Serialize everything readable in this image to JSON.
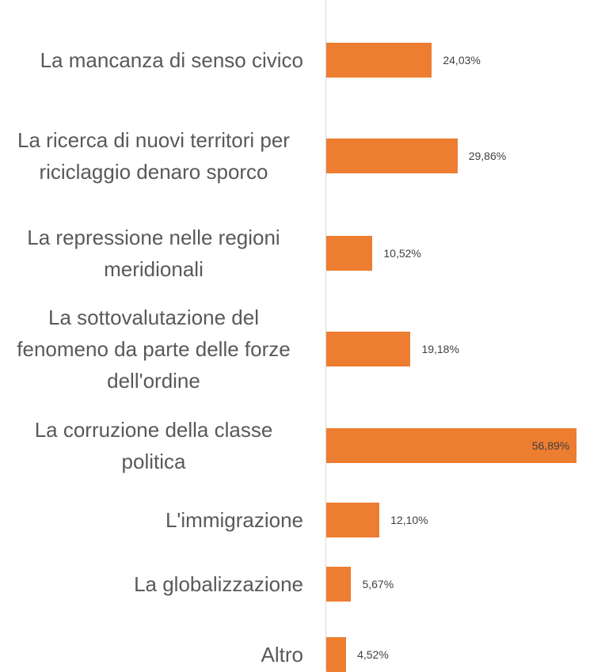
{
  "chart_data": {
    "type": "bar",
    "orientation": "horizontal",
    "categories": [
      "La mancanza di senso civico",
      "La ricerca di nuovi territori per riciclaggio denaro sporco",
      "La repressione nelle regioni meridionali",
      "La sottovalutazione del fenomeno da parte delle forze dell'ordine",
      "La corruzione della classe politica",
      "L'immigrazione",
      "La globalizzazione",
      "Altro"
    ],
    "values": [
      24.03,
      29.86,
      10.52,
      19.18,
      56.89,
      12.1,
      5.67,
      4.52
    ],
    "value_labels": [
      "24,03%",
      "29,86%",
      "10,52%",
      "19,18%",
      "56,89%",
      "12,10%",
      "5,67%",
      "4,52%"
    ],
    "color": "#ed7d31"
  }
}
